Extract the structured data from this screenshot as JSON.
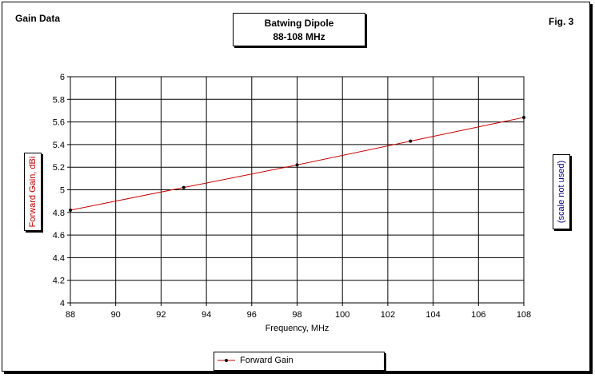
{
  "header": {
    "left_label": "Gain Data",
    "right_label": "Fig. 3"
  },
  "side": {
    "y_axis_label": "Forward Gain, dBi",
    "secondary_axis_label": "(scale not used)"
  },
  "colors": {
    "series": "#cc0000",
    "markers": "#000000",
    "grid": "#000000",
    "secondary_label": "#000080"
  },
  "chart_data": {
    "type": "line",
    "title": "Batwing Dipole",
    "subtitle": "88-108 MHz",
    "xlabel": "Frequency, MHz",
    "ylabel": "Forward Gain, dBi",
    "xlim": [
      88,
      108
    ],
    "ylim": [
      4,
      6
    ],
    "x_ticks": [
      "88",
      "90",
      "92",
      "94",
      "96",
      "98",
      "100",
      "102",
      "104",
      "106",
      "108"
    ],
    "y_ticks": [
      "4",
      "4.2",
      "4.4",
      "4.6",
      "4.8",
      "5",
      "5.2",
      "5.4",
      "5.6",
      "5.8",
      "6"
    ],
    "grid": true,
    "legend_position": "bottom",
    "series": [
      {
        "name": "Forward Gain",
        "x": [
          88,
          93,
          98,
          103,
          108
        ],
        "values": [
          4.82,
          5.02,
          5.22,
          5.43,
          5.64
        ]
      }
    ]
  }
}
